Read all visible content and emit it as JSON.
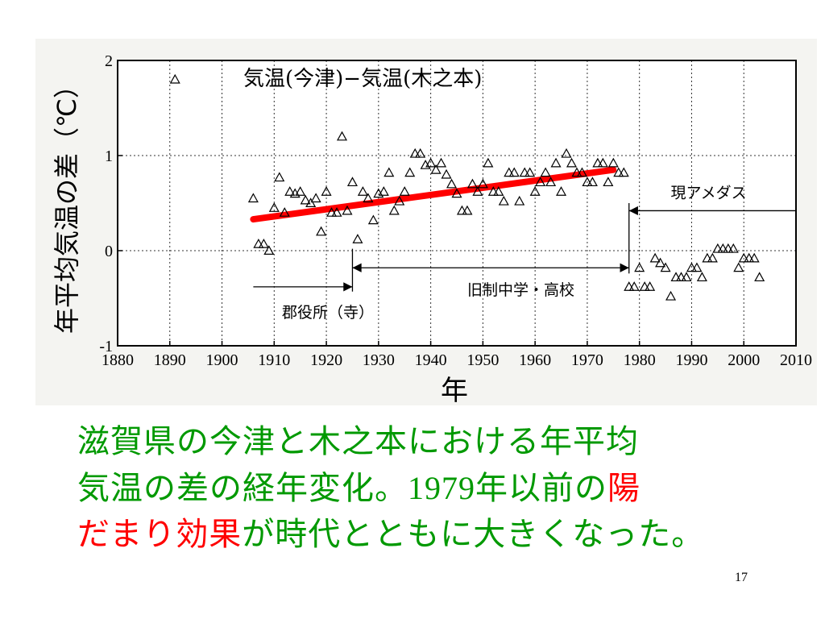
{
  "chart_data": {
    "type": "scatter",
    "title": "気温(今津)−気温(木之本)",
    "xlabel": "年",
    "ylabel": "年平均気温の差（℃）",
    "xlim": [
      1880,
      2010
    ],
    "ylim": [
      -1,
      2
    ],
    "x_ticks": [
      1880,
      1890,
      1900,
      1910,
      1920,
      1930,
      1940,
      1950,
      1960,
      1970,
      1980,
      1990,
      2000,
      2010
    ],
    "y_ticks": [
      -1,
      0,
      1,
      2
    ],
    "grid": true,
    "series": [
      {
        "marker": "triangle-open",
        "color": "#000000",
        "points": [
          [
            1891,
            1.8
          ],
          [
            1906,
            0.55
          ],
          [
            1907,
            0.07
          ],
          [
            1908,
            0.07
          ],
          [
            1909,
            0.0
          ],
          [
            1910,
            0.45
          ],
          [
            1911,
            0.77
          ],
          [
            1912,
            0.4
          ],
          [
            1913,
            0.62
          ],
          [
            1914,
            0.6
          ],
          [
            1915,
            0.62
          ],
          [
            1916,
            0.53
          ],
          [
            1917,
            0.5
          ],
          [
            1918,
            0.55
          ],
          [
            1919,
            0.2
          ],
          [
            1920,
            0.62
          ],
          [
            1921,
            0.4
          ],
          [
            1922,
            0.4
          ],
          [
            1923,
            1.2
          ],
          [
            1924,
            0.42
          ],
          [
            1925,
            0.72
          ],
          [
            1926,
            0.12
          ],
          [
            1927,
            0.62
          ],
          [
            1928,
            0.55
          ],
          [
            1929,
            0.32
          ],
          [
            1930,
            0.6
          ],
          [
            1931,
            0.62
          ],
          [
            1932,
            0.82
          ],
          [
            1933,
            0.42
          ],
          [
            1934,
            0.52
          ],
          [
            1935,
            0.62
          ],
          [
            1936,
            0.82
          ],
          [
            1937,
            1.02
          ],
          [
            1938,
            1.02
          ],
          [
            1939,
            0.9
          ],
          [
            1940,
            0.92
          ],
          [
            1941,
            0.85
          ],
          [
            1942,
            0.92
          ],
          [
            1943,
            0.8
          ],
          [
            1944,
            0.7
          ],
          [
            1945,
            0.6
          ],
          [
            1946,
            0.42
          ],
          [
            1947,
            0.42
          ],
          [
            1948,
            0.7
          ],
          [
            1949,
            0.62
          ],
          [
            1950,
            0.7
          ],
          [
            1951,
            0.92
          ],
          [
            1952,
            0.62
          ],
          [
            1953,
            0.62
          ],
          [
            1954,
            0.52
          ],
          [
            1955,
            0.82
          ],
          [
            1956,
            0.82
          ],
          [
            1957,
            0.52
          ],
          [
            1958,
            0.82
          ],
          [
            1959,
            0.82
          ],
          [
            1960,
            0.62
          ],
          [
            1961,
            0.72
          ],
          [
            1962,
            0.82
          ],
          [
            1963,
            0.72
          ],
          [
            1964,
            0.92
          ],
          [
            1965,
            0.62
          ],
          [
            1966,
            1.02
          ],
          [
            1967,
            0.92
          ],
          [
            1968,
            0.82
          ],
          [
            1969,
            0.82
          ],
          [
            1970,
            0.72
          ],
          [
            1971,
            0.72
          ],
          [
            1972,
            0.92
          ],
          [
            1973,
            0.92
          ],
          [
            1974,
            0.72
          ],
          [
            1975,
            0.92
          ],
          [
            1976,
            0.82
          ],
          [
            1977,
            0.82
          ],
          [
            1978,
            -0.38
          ],
          [
            1979,
            -0.38
          ],
          [
            1980,
            -0.18
          ],
          [
            1981,
            -0.38
          ],
          [
            1982,
            -0.38
          ],
          [
            1983,
            -0.08
          ],
          [
            1984,
            -0.13
          ],
          [
            1985,
            -0.18
          ],
          [
            1986,
            -0.48
          ],
          [
            1987,
            -0.28
          ],
          [
            1988,
            -0.28
          ],
          [
            1989,
            -0.28
          ],
          [
            1990,
            -0.18
          ],
          [
            1991,
            -0.18
          ],
          [
            1992,
            -0.28
          ],
          [
            1993,
            -0.08
          ],
          [
            1994,
            -0.08
          ],
          [
            1995,
            0.02
          ],
          [
            1996,
            0.02
          ],
          [
            1997,
            0.02
          ],
          [
            1998,
            0.02
          ],
          [
            1999,
            -0.18
          ],
          [
            2000,
            -0.08
          ],
          [
            2001,
            -0.08
          ],
          [
            2002,
            -0.08
          ],
          [
            2003,
            -0.28
          ]
        ]
      }
    ],
    "trend_line": {
      "color": "#ff0000",
      "start": [
        1906,
        0.33
      ],
      "end": [
        1975,
        0.85
      ]
    },
    "annotations": {
      "period_1": {
        "label": "郡役所（寺）",
        "x_from": 1906,
        "x_to": 1925,
        "y": -0.38
      },
      "period_2": {
        "label": "旧制中学・高校",
        "x_from": 1925,
        "x_to": 1978,
        "y": -0.18
      },
      "period_3": {
        "label": "現アメダス",
        "x_from": 1978,
        "x_to": 2010,
        "y": 0.42
      }
    }
  },
  "caption": {
    "line1": "滋賀県の今津と木之本における年平均",
    "line2_a": "気温の差の経年変化。",
    "line2_num": "1979",
    "line2_b": "年以前の",
    "line2_hl": "陽",
    "line3_hl": "だまり効果",
    "line3_b": "が時代とともに大きくなった。"
  },
  "page_number": "17",
  "colors": {
    "caption": "#009900",
    "highlight": "#ff0000"
  }
}
